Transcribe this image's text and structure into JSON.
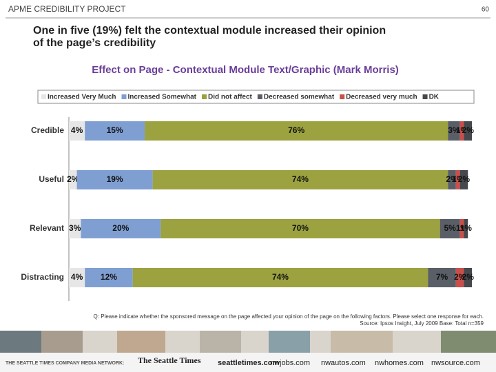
{
  "header": {
    "project": "APME CREDIBILITY PROJECT",
    "page_number": "60"
  },
  "headline": [
    "One in five (19%) felt the contextual module increased their opinion",
    "of the page’s credibility"
  ],
  "chart_data": {
    "type": "stacked-bar-horizontal",
    "title": "Effect on Page - Contextual Module Text/Graphic (Mark Morris)",
    "categories": [
      "Credible",
      "Useful",
      "Relevant",
      "Distracting"
    ],
    "series": [
      {
        "name": "Increased Very Much",
        "color": "#e6e6e6",
        "values": [
          4,
          2,
          3,
          4
        ],
        "value_labels": [
          "4%",
          "2%",
          "3%",
          "4%"
        ]
      },
      {
        "name": "Increased Somewhat",
        "color": "#7f9fd3",
        "values": [
          15,
          19,
          20,
          12
        ],
        "value_labels": [
          "15%",
          "19%",
          "20%",
          "12%"
        ]
      },
      {
        "name": "Did not affect",
        "color": "#9ca23f",
        "values": [
          76,
          74,
          70,
          74
        ],
        "value_labels": [
          "76%",
          "74%",
          "70%",
          "74%"
        ]
      },
      {
        "name": "Decreased somewhat",
        "color": "#5a5e66",
        "values": [
          3,
          2,
          5,
          7
        ],
        "value_labels": [
          "3%",
          "2%",
          "5%",
          "7%"
        ]
      },
      {
        "name": "Decreased very much",
        "color": "#c9504a",
        "values": [
          1,
          1,
          1,
          2
        ],
        "value_labels": [
          "1%",
          "1%",
          "1%",
          "2%"
        ]
      },
      {
        "name": "DK",
        "color": "#45484d",
        "values": [
          2,
          2,
          1,
          2
        ],
        "value_labels": [
          "2%",
          "2%",
          "1%",
          "2%"
        ]
      }
    ]
  },
  "footnote": [
    "Q: Please indicate whether the sponsored message on the page affected your opinion of the page on the following factors. Please select one response for each.",
    "Source: Ipsos Insight, July 2009 Base: Total n=359"
  ],
  "footer": {
    "network": "THE SEATTLE TIMES COMPANY MEDIA NETWORK:",
    "logos": [
      "The Seattle Times",
      "seattletimes.com",
      "nwjobs.com",
      "nwautos.com",
      "nwhomes.com",
      "nwsource.com"
    ]
  }
}
